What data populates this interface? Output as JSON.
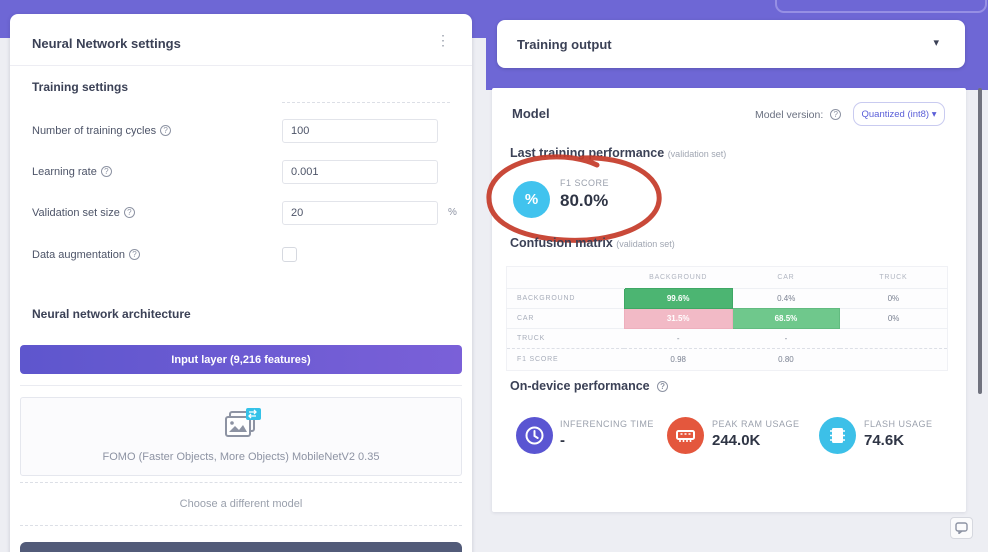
{
  "left_panel": {
    "title": "Neural Network settings",
    "training_settings_heading": "Training settings",
    "fields": {
      "cycles": {
        "label": "Number of training cycles",
        "value": "100"
      },
      "learning": {
        "label": "Learning rate",
        "value": "0.001"
      },
      "validation": {
        "label": "Validation set size",
        "value": "20",
        "suffix": "%"
      },
      "augment": {
        "label": "Data augmentation"
      }
    },
    "architecture_heading": "Neural network architecture",
    "input_layer_label": "Input layer (9,216 features)",
    "model_name": "FOMO (Faster Objects, More Objects) MobileNetV2 0.35",
    "choose_model_label": "Choose a different model",
    "menu_glyph": "⋮"
  },
  "right_panel": {
    "header_title": "Training output",
    "header_caret": "▾",
    "model_heading": "Model",
    "model_version_label": "Model version:",
    "model_version_value": "Quantized (int8) ▾",
    "last_training": {
      "title": "Last training performance",
      "subtitle": "(validation set)",
      "f1_label": "F1 SCORE",
      "f1_value": "80.0%",
      "f1_icon_glyph": "%"
    },
    "confusion_matrix": {
      "title": "Confusion matrix",
      "subtitle": "(validation set)",
      "columns": [
        "BACKGROUND",
        "CAR",
        "TRUCK"
      ],
      "rows": [
        {
          "label": "BACKGROUND",
          "cells": [
            "99.6%",
            "0.4%",
            "0%"
          ],
          "classes": [
            "cm-green-strong",
            "",
            ""
          ]
        },
        {
          "label": "CAR",
          "cells": [
            "31.5%",
            "68.5%",
            "0%"
          ],
          "classes": [
            "cm-pink",
            "cm-green",
            ""
          ]
        },
        {
          "label": "TRUCK",
          "cells": [
            "-",
            "-",
            ""
          ],
          "classes": [
            "",
            "",
            ""
          ]
        },
        {
          "label": "F1 SCORE",
          "cells": [
            "0.98",
            "0.80",
            ""
          ],
          "classes": [
            "",
            "",
            ""
          ],
          "f1_row": true
        }
      ]
    },
    "on_device": {
      "title": "On-device performance",
      "stats": {
        "inferencing": {
          "label": "INFERENCING TIME",
          "value": "-"
        },
        "ram": {
          "label": "PEAK RAM USAGE",
          "value": "244.0K"
        },
        "flash": {
          "label": "FLASH USAGE",
          "value": "74.6K"
        }
      }
    }
  },
  "colors": {
    "header_purple": "#6e67d5",
    "accent_purple": "#5a5ed8",
    "f1_cyan": "#41c3ee",
    "matrix_green_strong": "#4cb572",
    "matrix_green": "#6fc88c",
    "matrix_pink": "#f2bac6",
    "annotation_red": "#c43a28",
    "stat_indigo": "#5a55d2",
    "stat_red": "#e4573d",
    "stat_cyan": "#3cc0e8"
  }
}
